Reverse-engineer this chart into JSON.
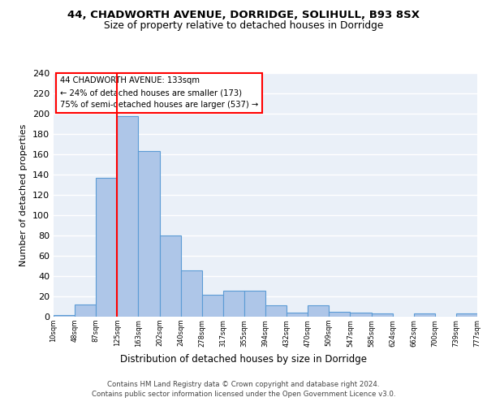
{
  "title1": "44, CHADWORTH AVENUE, DORRIDGE, SOLIHULL, B93 8SX",
  "title2": "Size of property relative to detached houses in Dorridge",
  "xlabel": "Distribution of detached houses by size in Dorridge",
  "ylabel": "Number of detached properties",
  "bar_values": [
    2,
    12,
    137,
    198,
    163,
    80,
    46,
    22,
    26,
    26,
    11,
    4,
    11,
    5,
    4,
    3,
    0,
    3,
    0,
    3
  ],
  "bin_labels": [
    "10sqm",
    "48sqm",
    "87sqm",
    "125sqm",
    "163sqm",
    "202sqm",
    "240sqm",
    "278sqm",
    "317sqm",
    "355sqm",
    "394sqm",
    "432sqm",
    "470sqm",
    "509sqm",
    "547sqm",
    "585sqm",
    "624sqm",
    "662sqm",
    "700sqm",
    "739sqm",
    "777sqm"
  ],
  "bar_color": "#aec6e8",
  "bar_edge_color": "#5b9bd5",
  "background_color": "#eaf0f8",
  "grid_color": "#ffffff",
  "annotation_line1": "44 CHADWORTH AVENUE: 133sqm",
  "annotation_line2": "← 24% of detached houses are smaller (173)",
  "annotation_line3": "75% of semi-detached houses are larger (537) →",
  "footer1": "Contains HM Land Registry data © Crown copyright and database right 2024.",
  "footer2": "Contains public sector information licensed under the Open Government Licence v3.0.",
  "ylim": [
    0,
    240
  ],
  "yticks": [
    0,
    20,
    40,
    60,
    80,
    100,
    120,
    140,
    160,
    180,
    200,
    220,
    240
  ],
  "red_line_x": 2.5
}
